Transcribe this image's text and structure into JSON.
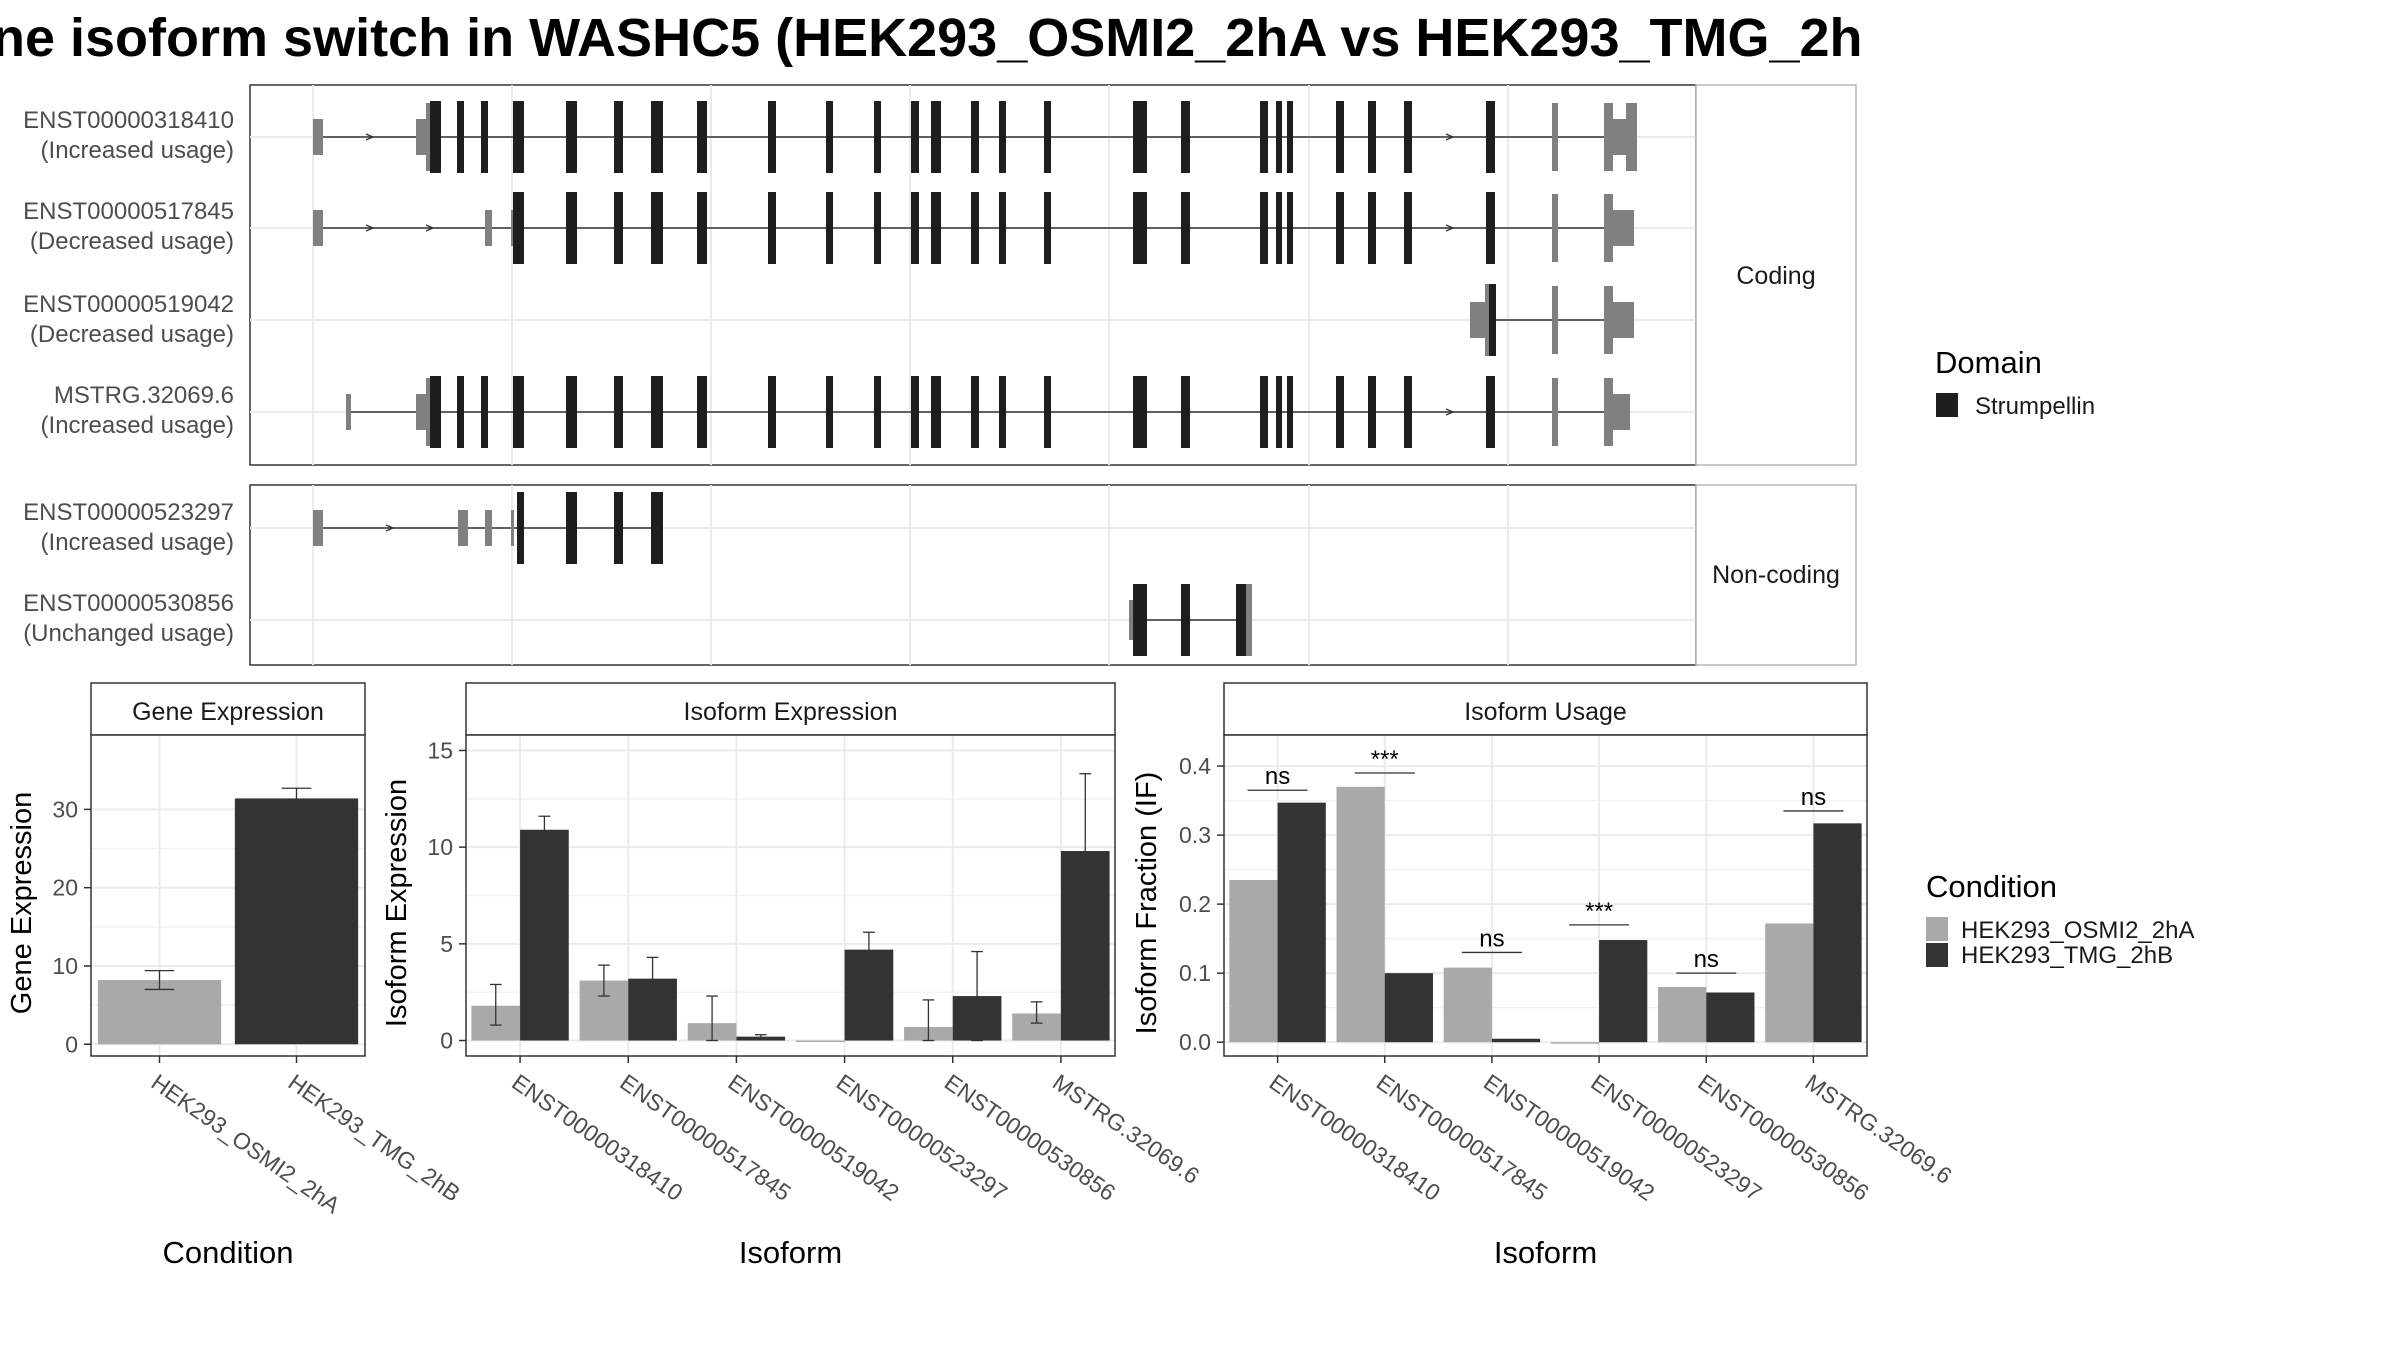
{
  "title": "ne isoform switch in WASHC5 (HEK293_OSMI2_2hA vs HEK293_TMG_2h",
  "structure": {
    "coding_strip": "Coding",
    "noncoding_strip": "Non-coding",
    "coding": [
      {
        "id": "ENST00000318410",
        "usage": "(Increased usage)"
      },
      {
        "id": "ENST00000517845",
        "usage": "(Decreased usage)"
      },
      {
        "id": "ENST00000519042",
        "usage": "(Decreased usage)"
      },
      {
        "id": "MSTRG.32069.6",
        "usage": "(Increased usage)"
      }
    ],
    "noncoding": [
      {
        "id": "ENST00000523297",
        "usage": "(Increased usage)"
      },
      {
        "id": "ENST00000530856",
        "usage": "(Unchanged usage)"
      }
    ]
  },
  "legends": {
    "domain_title": "Domain",
    "domain_item": "Strumpellin",
    "domain_color": "#1e1e1e",
    "condition_title": "Condition",
    "conditions": [
      "HEK293_OSMI2_2hA",
      "HEK293_TMG_2hB"
    ],
    "condition_colors": [
      "#a9a9a9",
      "#333333"
    ]
  },
  "chart_data": [
    {
      "type": "bar",
      "title": "Gene Expression",
      "xlabel": "Condition",
      "ylabel": "Gene Expression",
      "categories": [
        "HEK293_OSMI2_2hA",
        "HEK293_TMG_2hB"
      ],
      "values": [
        8.2,
        31.4
      ],
      "err_low": [
        7.0,
        30.1
      ],
      "err_high": [
        9.4,
        32.7
      ],
      "ylim": [
        -1.5,
        39.5
      ],
      "yticks": [
        0,
        10,
        20,
        30
      ]
    },
    {
      "type": "bar",
      "title": "Isoform Expression",
      "xlabel": "Isoform",
      "ylabel": "Isoform Expression",
      "categories": [
        "ENST00000318410",
        "ENST00000517845",
        "ENST00000519042",
        "ENST00000523297",
        "ENST00000530856",
        "MSTRG.32069.6"
      ],
      "series": [
        {
          "name": "HEK293_OSMI2_2hA",
          "values": [
            1.8,
            3.1,
            0.9,
            0.0,
            0.7,
            1.4
          ],
          "err_low": [
            0.8,
            2.3,
            0.0,
            0.0,
            0.0,
            0.9
          ],
          "err_high": [
            2.9,
            3.9,
            2.3,
            0.0,
            2.1,
            2.0
          ]
        },
        {
          "name": "HEK293_TMG_2hB",
          "values": [
            10.9,
            3.2,
            0.2,
            4.7,
            2.3,
            9.8
          ],
          "err_low": [
            10.2,
            2.2,
            0.1,
            3.9,
            0.0,
            5.9
          ],
          "err_high": [
            11.6,
            4.3,
            0.3,
            5.6,
            4.6,
            13.8
          ]
        }
      ],
      "ylim": [
        -0.8,
        15.8
      ],
      "yticks": [
        0,
        5,
        10,
        15
      ]
    },
    {
      "type": "bar",
      "title": "Isoform Usage",
      "xlabel": "Isoform",
      "ylabel": "Isoform Fraction (IF)",
      "categories": [
        "ENST00000318410",
        "ENST00000517845",
        "ENST00000519042",
        "ENST00000523297",
        "ENST00000530856",
        "MSTRG.32069.6"
      ],
      "series": [
        {
          "name": "HEK293_OSMI2_2hA",
          "values": [
            0.235,
            0.37,
            0.108,
            0.0,
            0.08,
            0.172
          ]
        },
        {
          "name": "HEK293_TMG_2hB",
          "values": [
            0.347,
            0.1,
            0.005,
            0.148,
            0.072,
            0.317
          ]
        }
      ],
      "significance": [
        "ns",
        "***",
        "ns",
        "***",
        "ns",
        "ns"
      ],
      "sig_y": [
        0.365,
        0.39,
        0.13,
        0.17,
        0.1,
        0.335
      ],
      "ylim": [
        -0.02,
        0.445
      ],
      "yticks": [
        0.0,
        0.1,
        0.2,
        0.3,
        0.4
      ],
      "ytick_labels": [
        "0.0",
        "0.1",
        "0.2",
        "0.3",
        "0.4"
      ]
    }
  ]
}
